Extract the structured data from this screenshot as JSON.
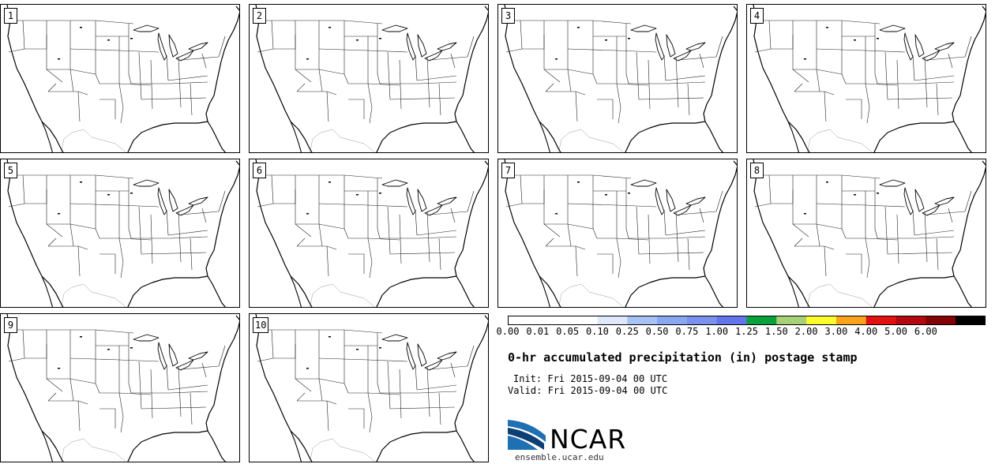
{
  "stamps": [
    {
      "label": "1"
    },
    {
      "label": "2"
    },
    {
      "label": "3"
    },
    {
      "label": "4"
    },
    {
      "label": "5"
    },
    {
      "label": "6"
    },
    {
      "label": "7"
    },
    {
      "label": "8"
    },
    {
      "label": "9"
    },
    {
      "label": "10"
    }
  ],
  "colorbar": {
    "labels": [
      "0.00",
      "0.01",
      "0.05",
      "0.10",
      "0.25",
      "0.50",
      "0.75",
      "1.00",
      "1.25",
      "1.50",
      "2.00",
      "3.00",
      "4.00",
      "5.00",
      "6.00"
    ],
    "colors": [
      "#ffffff",
      "#ffffff",
      "#ffffff",
      "#dfe8fb",
      "#a9c2f5",
      "#8aa8f2",
      "#7b90ef",
      "#6474ea",
      "#08a13b",
      "#a8d076",
      "#fdfd2b",
      "#fda31b",
      "#e1120f",
      "#b5070f",
      "#820006",
      "#000000"
    ]
  },
  "title": "0-hr accumulated precipitation (in) postage stamp",
  "init": {
    "label": "Init:",
    "value": "Fri 2015-09-04 00 UTC"
  },
  "valid": {
    "label": "Valid:",
    "value": "Fri 2015-09-04 00 UTC"
  },
  "logo": {
    "text": "NCAR",
    "url": "ensemble.ucar.edu",
    "colors": {
      "blue": "#1f6fb3",
      "dark": "#0d3f74"
    }
  }
}
